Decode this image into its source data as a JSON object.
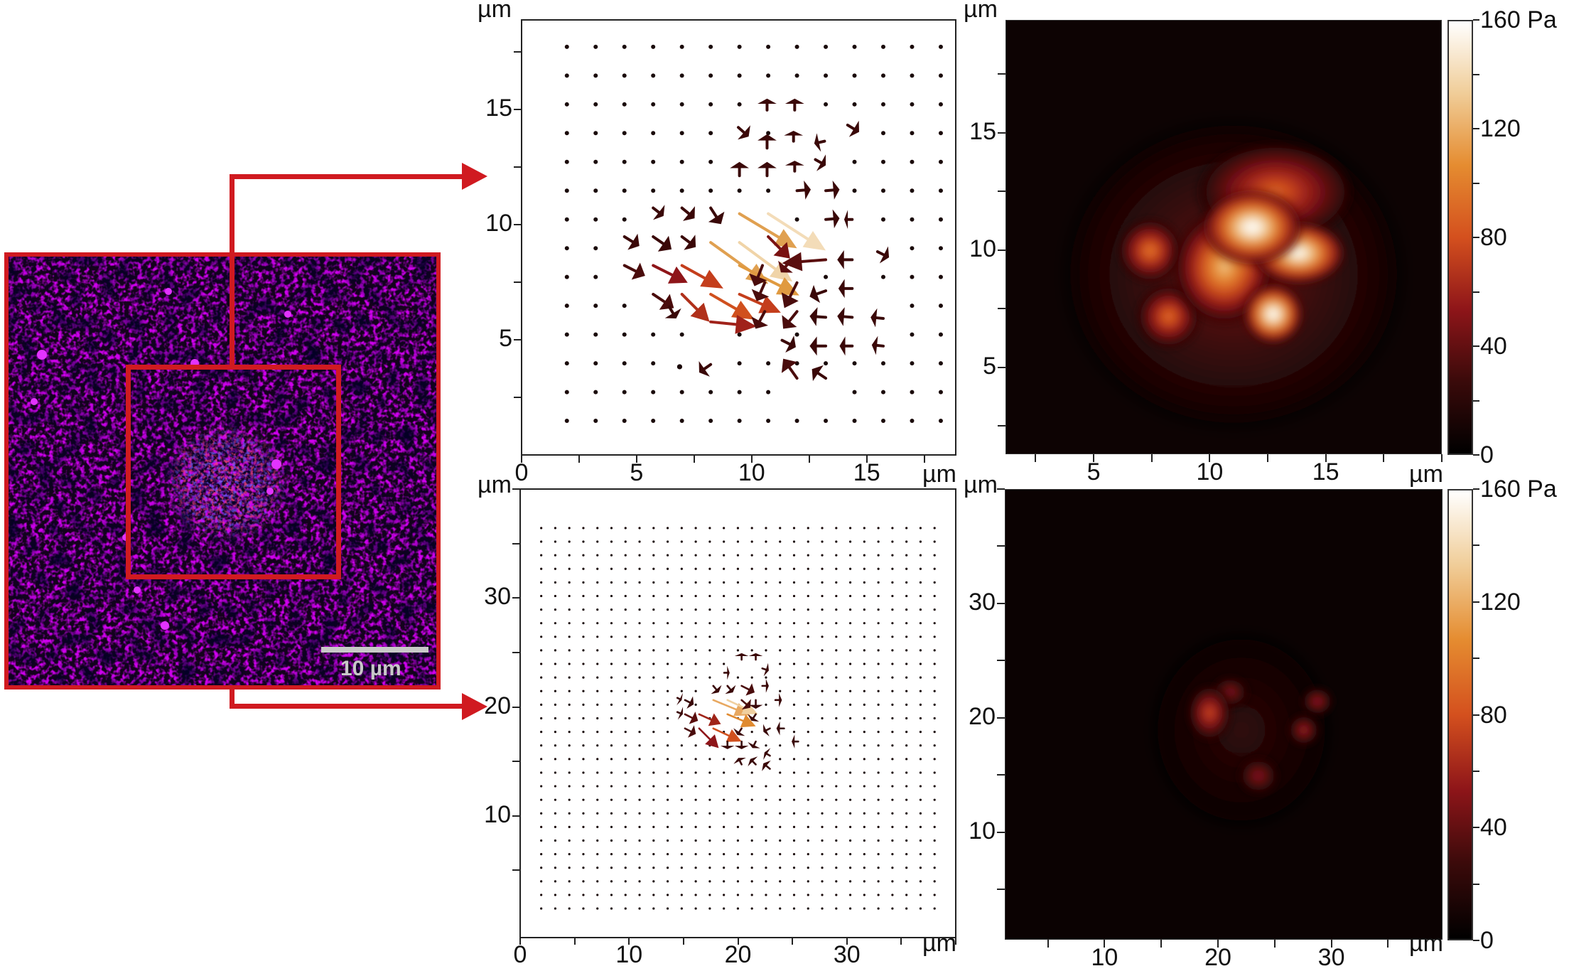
{
  "figure": {
    "micrograph": {
      "scale_bar_label": "10 µm",
      "frame_color": "#d01a20"
    },
    "units": {
      "length": "µm",
      "stress": "Pa"
    },
    "colorbar": {
      "max_label": "160 Pa",
      "tick_labels": [
        "120",
        "80",
        "40",
        "0"
      ],
      "stops": [
        "#000000",
        "#3a0a0a",
        "#8e1519",
        "#d4501e",
        "#e58c30",
        "#f0cd98",
        "#ffffff"
      ]
    }
  },
  "chart_data": [
    {
      "id": "top-quiver",
      "type": "quiver",
      "title": "Traction vectors (zoomed region)",
      "xlabel": "µm",
      "ylabel": "µm",
      "xlim": [
        0,
        18.9
      ],
      "ylim": [
        0,
        18.9
      ],
      "xticks": [
        0,
        5,
        10,
        15
      ],
      "xtick_labels": [
        "0",
        "5",
        "10",
        "15"
      ],
      "yticks": [
        5,
        10,
        15
      ],
      "ytick_labels": [
        "5",
        "10",
        "15"
      ],
      "grid_x": [
        2.0,
        3.25,
        4.5,
        5.75,
        7.0,
        8.25,
        9.5,
        10.75,
        12.0,
        13.25,
        14.5,
        15.75,
        17.0,
        18.25
      ],
      "grid_y": [
        17.7,
        16.45,
        15.2,
        13.95,
        12.7,
        11.45,
        10.2,
        8.95,
        7.7,
        6.45,
        5.2,
        3.95,
        2.7,
        1.45
      ],
      "arrows": [
        {
          "x": 9.5,
          "y": 10.45,
          "dx": 2.5,
          "dy": -1.5,
          "c": "#e0a050"
        },
        {
          "x": 10.75,
          "y": 10.45,
          "dx": 2.5,
          "dy": -1.6,
          "c": "#f3dcb8"
        },
        {
          "x": 8.25,
          "y": 9.2,
          "dx": 2.5,
          "dy": -1.8,
          "c": "#e0a050"
        },
        {
          "x": 9.5,
          "y": 9.2,
          "dx": 2.3,
          "dy": -1.7,
          "c": "#f0d4a8"
        },
        {
          "x": 9.5,
          "y": 8.2,
          "dx": 2.6,
          "dy": -1.3,
          "c": "#e09a40"
        },
        {
          "x": 5.75,
          "y": 8.2,
          "dx": 1.5,
          "dy": -0.75,
          "c": "#8e1519"
        },
        {
          "x": 7.0,
          "y": 8.2,
          "dx": 1.8,
          "dy": -1.0,
          "c": "#c43e1c"
        },
        {
          "x": 8.25,
          "y": 6.95,
          "dx": 1.9,
          "dy": -1.1,
          "c": "#d0501e"
        },
        {
          "x": 9.5,
          "y": 6.95,
          "dx": 1.8,
          "dy": -0.8,
          "c": "#c43e1c"
        },
        {
          "x": 7.0,
          "y": 6.95,
          "dx": 1.2,
          "dy": -1.2,
          "c": "#b0301a"
        },
        {
          "x": 8.25,
          "y": 5.75,
          "dx": 2.0,
          "dy": -0.2,
          "c": "#a0221a"
        },
        {
          "x": 4.5,
          "y": 8.2,
          "dx": 0.9,
          "dy": -0.45,
          "c": "#4a0c0c"
        },
        {
          "x": 5.75,
          "y": 6.95,
          "dx": 0.9,
          "dy": -0.6,
          "c": "#4a0c0c"
        },
        {
          "x": 6.45,
          "y": 6.4,
          "dx": 0.3,
          "dy": -0.5,
          "c": "#3a0808"
        },
        {
          "x": 4.5,
          "y": 9.45,
          "dx": 0.65,
          "dy": -0.4,
          "c": "#3a0808"
        },
        {
          "x": 5.75,
          "y": 9.45,
          "dx": 0.8,
          "dy": -0.55,
          "c": "#3a0808"
        },
        {
          "x": 7.0,
          "y": 9.45,
          "dx": 0.6,
          "dy": -0.45,
          "c": "#3a0808"
        },
        {
          "x": 5.75,
          "y": 10.7,
          "dx": 0.45,
          "dy": -0.35,
          "c": "#3a0808"
        },
        {
          "x": 7.0,
          "y": 10.7,
          "dx": 0.55,
          "dy": -0.45,
          "c": "#3a0808"
        },
        {
          "x": 8.25,
          "y": 10.7,
          "dx": 0.45,
          "dy": -0.7,
          "c": "#3a0808"
        },
        {
          "x": 10.75,
          "y": 9.45,
          "dx": 0.95,
          "dy": -0.95,
          "c": "#7a1212"
        },
        {
          "x": 13.25,
          "y": 8.45,
          "dx": -1.9,
          "dy": -0.15,
          "c": "#5a0e0e"
        },
        {
          "x": 11.75,
          "y": 8.45,
          "dx": -0.45,
          "dy": -0.55,
          "c": "#5a0e0e"
        },
        {
          "x": 10.5,
          "y": 8.2,
          "dx": -0.35,
          "dy": -0.9,
          "c": "#4a0c0c"
        },
        {
          "x": 12.0,
          "y": 7.45,
          "dx": -0.55,
          "dy": -1.1,
          "c": "#4a0c0c"
        },
        {
          "x": 10.6,
          "y": 7.45,
          "dx": -0.35,
          "dy": -0.8,
          "c": "#4a0c0c"
        },
        {
          "x": 10.6,
          "y": 6.2,
          "dx": -0.4,
          "dy": -0.75,
          "c": "#4a0c0c"
        },
        {
          "x": 12.0,
          "y": 6.2,
          "dx": -0.6,
          "dy": -0.75,
          "c": "#4a0c0c"
        },
        {
          "x": 13.25,
          "y": 7.1,
          "dx": -0.7,
          "dy": -0.25,
          "c": "#3a0808"
        },
        {
          "x": 14.4,
          "y": 8.45,
          "dx": -0.65,
          "dy": 0.0,
          "c": "#3a0808"
        },
        {
          "x": 14.4,
          "y": 7.2,
          "dx": -0.6,
          "dy": 0.0,
          "c": "#3a0808"
        },
        {
          "x": 15.5,
          "y": 8.8,
          "dx": 0.5,
          "dy": -0.25,
          "c": "#3a0808"
        },
        {
          "x": 13.25,
          "y": 5.95,
          "dx": -0.7,
          "dy": 0.05,
          "c": "#3a0808"
        },
        {
          "x": 14.4,
          "y": 5.95,
          "dx": -0.65,
          "dy": 0.05,
          "c": "#3a0808"
        },
        {
          "x": 15.75,
          "y": 5.9,
          "dx": -0.55,
          "dy": 0.05,
          "c": "#3a0808"
        },
        {
          "x": 11.35,
          "y": 4.95,
          "dx": 0.6,
          "dy": -0.3,
          "c": "#3a0808"
        },
        {
          "x": 13.25,
          "y": 4.7,
          "dx": -0.7,
          "dy": 0.0,
          "c": "#3a0808"
        },
        {
          "x": 14.4,
          "y": 4.7,
          "dx": -0.55,
          "dy": 0.0,
          "c": "#3a0808"
        },
        {
          "x": 15.75,
          "y": 4.7,
          "dx": -0.5,
          "dy": 0.05,
          "c": "#3a0808"
        },
        {
          "x": 12.0,
          "y": 3.3,
          "dx": -0.6,
          "dy": 0.85,
          "c": "#4a0c0c"
        },
        {
          "x": 13.25,
          "y": 3.3,
          "dx": -0.6,
          "dy": 0.4,
          "c": "#3a0808"
        },
        {
          "x": 8.25,
          "y": 3.9,
          "dx": -0.5,
          "dy": -0.35,
          "c": "#3a0808"
        },
        {
          "x": 9.45,
          "y": 14.2,
          "dx": 0.45,
          "dy": -0.4,
          "c": "#3a0808"
        },
        {
          "x": 10.7,
          "y": 13.3,
          "dx": 0.0,
          "dy": 0.6,
          "c": "#3a0808"
        },
        {
          "x": 11.85,
          "y": 13.6,
          "dx": 0.0,
          "dy": 0.45,
          "c": "#3a0808"
        },
        {
          "x": 13.2,
          "y": 13.6,
          "dx": -0.45,
          "dy": -0.1,
          "c": "#3a0808"
        },
        {
          "x": 14.2,
          "y": 14.3,
          "dx": 0.5,
          "dy": -0.3,
          "c": "#3a0808"
        },
        {
          "x": 9.5,
          "y": 12.1,
          "dx": 0.0,
          "dy": 0.6,
          "c": "#3a0808"
        },
        {
          "x": 10.7,
          "y": 12.1,
          "dx": 0.0,
          "dy": 0.6,
          "c": "#3a0808"
        },
        {
          "x": 11.9,
          "y": 12.3,
          "dx": 0.0,
          "dy": 0.45,
          "c": "#3a0808"
        },
        {
          "x": 12.8,
          "y": 12.8,
          "dx": 0.45,
          "dy": -0.25,
          "c": "#3a0808"
        },
        {
          "x": 10.7,
          "y": 14.95,
          "dx": 0.0,
          "dy": 0.5,
          "c": "#3a0808"
        },
        {
          "x": 11.9,
          "y": 14.95,
          "dx": 0.0,
          "dy": 0.5,
          "c": "#3a0808"
        },
        {
          "x": 12.0,
          "y": 11.45,
          "dx": 0.6,
          "dy": 0.05,
          "c": "#3a0808"
        },
        {
          "x": 13.25,
          "y": 11.45,
          "dx": 0.6,
          "dy": 0.05,
          "c": "#3a0808"
        },
        {
          "x": 13.25,
          "y": 10.2,
          "dx": 0.6,
          "dy": 0.05,
          "c": "#3a0808"
        },
        {
          "x": 14.4,
          "y": 10.2,
          "dx": -0.35,
          "dy": 0.0,
          "c": "#3a0808"
        },
        {
          "x": 6.9,
          "y": 3.8,
          "dx": 0.0,
          "dy": 0.0,
          "c": "#3a0808"
        }
      ]
    },
    {
      "id": "top-heatmap",
      "type": "heatmap",
      "title": "Traction stress magnitude (zoomed region)",
      "xlabel": "µm",
      "ylabel": "µm",
      "xlim": [
        1.2,
        20.0
      ],
      "ylim": [
        1.3,
        19.8
      ],
      "xticks": [
        5,
        10,
        15
      ],
      "xtick_labels": [
        "5",
        "10",
        "15"
      ],
      "yticks": [
        5,
        10,
        15
      ],
      "ytick_labels": [
        "5",
        "10",
        "15"
      ],
      "colorbar": {
        "label": "Pa",
        "range": [
          0,
          160
        ],
        "ticks": [
          0,
          40,
          80,
          120,
          160
        ]
      },
      "hotspots": [
        {
          "x": 11.8,
          "y": 11.0,
          "rx": 1.6,
          "ry": 1.2,
          "value": 175
        },
        {
          "x": 13.8,
          "y": 9.9,
          "rx": 1.5,
          "ry": 1.0,
          "value": 170
        },
        {
          "x": 12.7,
          "y": 7.3,
          "rx": 0.95,
          "ry": 0.95,
          "value": 175
        },
        {
          "x": 10.6,
          "y": 9.3,
          "rx": 1.6,
          "ry": 1.8,
          "value": 130
        },
        {
          "x": 7.4,
          "y": 10.0,
          "rx": 1.0,
          "ry": 1.0,
          "value": 100
        },
        {
          "x": 8.2,
          "y": 7.2,
          "rx": 1.0,
          "ry": 1.0,
          "value": 95
        },
        {
          "x": 12.8,
          "y": 12.5,
          "rx": 2.5,
          "ry": 1.6,
          "value": 90
        },
        {
          "x": 11.0,
          "y": 9.0,
          "rx": 5.5,
          "ry": 5.0,
          "value": 45
        }
      ]
    },
    {
      "id": "bottom-quiver",
      "type": "quiver",
      "title": "Traction vectors (full field)",
      "xlabel": "µm",
      "ylabel": "µm",
      "xlim": [
        0,
        40.0
      ],
      "ylim": [
        -1.1,
        40.0
      ],
      "xticks": [
        0,
        10,
        20,
        30
      ],
      "xtick_labels": [
        "0",
        "10",
        "20",
        "30"
      ],
      "yticks": [
        10,
        20,
        30
      ],
      "ytick_labels": [
        "10",
        "20",
        "30"
      ],
      "grid": {
        "x_start": 2.0,
        "x_step": 1.29,
        "nx": 29,
        "y_start": 1.5,
        "y_step": 1.245,
        "ny": 29
      },
      "arrows": [
        {
          "x": 17.8,
          "y": 20.6,
          "dx": 3.4,
          "dy": -1.4,
          "c": "#e8a860"
        },
        {
          "x": 19.1,
          "y": 20.6,
          "dx": 2.8,
          "dy": -1.3,
          "c": "#f0d0a0"
        },
        {
          "x": 19.1,
          "y": 19.3,
          "dx": 2.6,
          "dy": -1.1,
          "c": "#e08a30"
        },
        {
          "x": 17.8,
          "y": 18.0,
          "dx": 2.6,
          "dy": -1.2,
          "c": "#d0501e"
        },
        {
          "x": 16.5,
          "y": 19.3,
          "dx": 2.0,
          "dy": -0.9,
          "c": "#a02418"
        },
        {
          "x": 16.5,
          "y": 18.0,
          "dx": 1.8,
          "dy": -1.8,
          "c": "#8e1519"
        },
        {
          "x": 15.2,
          "y": 19.3,
          "dx": 1.2,
          "dy": -0.6,
          "c": "#5a0e0e"
        },
        {
          "x": 15.2,
          "y": 18.0,
          "dx": 1.0,
          "dy": -0.5,
          "c": "#4a0c0c"
        },
        {
          "x": 15.2,
          "y": 20.6,
          "dx": 0.8,
          "dy": -0.4,
          "c": "#3a0808"
        },
        {
          "x": 17.8,
          "y": 21.9,
          "dx": 0.5,
          "dy": -0.6,
          "c": "#3a0808"
        },
        {
          "x": 19.1,
          "y": 21.9,
          "dx": 0.5,
          "dy": -0.6,
          "c": "#3a0808"
        },
        {
          "x": 20.4,
          "y": 21.9,
          "dx": 1.2,
          "dy": -0.6,
          "c": "#4a0c0c"
        },
        {
          "x": 20.4,
          "y": 20.6,
          "dx": 0.8,
          "dy": -0.7,
          "c": "#4a0c0c"
        },
        {
          "x": 21.7,
          "y": 20.6,
          "dx": 0.0,
          "dy": -0.8,
          "c": "#3a0808"
        },
        {
          "x": 21.7,
          "y": 19.3,
          "dx": -0.4,
          "dy": -0.6,
          "c": "#3a0808"
        },
        {
          "x": 20.4,
          "y": 18.0,
          "dx": -0.4,
          "dy": -0.6,
          "c": "#3a0808"
        },
        {
          "x": 20.4,
          "y": 16.8,
          "dx": 0.0,
          "dy": -0.7,
          "c": "#3a0808"
        },
        {
          "x": 19.1,
          "y": 16.8,
          "dx": 0.0,
          "dy": -0.7,
          "c": "#3a0808"
        },
        {
          "x": 21.7,
          "y": 16.8,
          "dx": -0.3,
          "dy": -0.6,
          "c": "#3a0808"
        },
        {
          "x": 23.0,
          "y": 18.0,
          "dx": -0.6,
          "dy": -0.3,
          "c": "#3a0808"
        },
        {
          "x": 24.3,
          "y": 18.0,
          "dx": -0.7,
          "dy": 0.0,
          "c": "#3a0808"
        },
        {
          "x": 25.6,
          "y": 16.8,
          "dx": -0.6,
          "dy": 0.0,
          "c": "#3a0808"
        },
        {
          "x": 23.0,
          "y": 15.5,
          "dx": -0.5,
          "dy": 0.3,
          "c": "#3a0808"
        },
        {
          "x": 21.7,
          "y": 14.7,
          "dx": -0.5,
          "dy": 0.5,
          "c": "#3a0808"
        },
        {
          "x": 23.0,
          "y": 14.3,
          "dx": -0.6,
          "dy": 0.5,
          "c": "#3a0808"
        },
        {
          "x": 20.4,
          "y": 14.7,
          "dx": -0.3,
          "dy": 0.6,
          "c": "#3a0808"
        },
        {
          "x": 22.3,
          "y": 21.9,
          "dx": 0.6,
          "dy": 0.0,
          "c": "#3a0808"
        },
        {
          "x": 23.5,
          "y": 20.6,
          "dx": 0.6,
          "dy": 0.0,
          "c": "#3a0808"
        },
        {
          "x": 20.4,
          "y": 24.3,
          "dx": 0.0,
          "dy": 0.6,
          "c": "#3a0808"
        },
        {
          "x": 21.7,
          "y": 24.3,
          "dx": 0.0,
          "dy": 0.6,
          "c": "#3a0808"
        },
        {
          "x": 18.8,
          "y": 23.1,
          "dx": 0.5,
          "dy": 0.0,
          "c": "#3a0808"
        },
        {
          "x": 22.3,
          "y": 23.5,
          "dx": 0.6,
          "dy": -0.2,
          "c": "#3a0808"
        },
        {
          "x": 14.5,
          "y": 20.8,
          "dx": 0.4,
          "dy": -0.2,
          "c": "#3a0808"
        },
        {
          "x": 14.5,
          "y": 19.5,
          "dx": 0.5,
          "dy": -0.2,
          "c": "#3a0808"
        }
      ]
    },
    {
      "id": "bottom-heatmap",
      "type": "heatmap",
      "title": "Traction stress magnitude (full field)",
      "xlabel": "µm",
      "ylabel": "µm",
      "xlim": [
        1.2,
        39.8
      ],
      "ylim": [
        0.6,
        40.0
      ],
      "xticks": [
        10,
        20,
        30
      ],
      "xtick_labels": [
        "10",
        "20",
        "30"
      ],
      "xminor": [
        5,
        15,
        25,
        35
      ],
      "yticks": [
        10,
        20,
        30
      ],
      "ytick_labels": [
        "10",
        "20",
        "30"
      ],
      "colorbar": {
        "label": "Pa",
        "range": [
          0,
          160
        ],
        "ticks": [
          0,
          40,
          80,
          120,
          160
        ]
      },
      "hotspots": [
        {
          "x": 19.2,
          "y": 20.5,
          "rx": 1.4,
          "ry": 1.8,
          "value": 80
        },
        {
          "x": 21.0,
          "y": 22.3,
          "rx": 1.2,
          "ry": 1.0,
          "value": 55
        },
        {
          "x": 28.7,
          "y": 21.5,
          "rx": 1.0,
          "ry": 0.9,
          "value": 60
        },
        {
          "x": 27.5,
          "y": 19.0,
          "rx": 1.0,
          "ry": 1.0,
          "value": 62
        },
        {
          "x": 23.5,
          "y": 15.0,
          "rx": 1.3,
          "ry": 1.2,
          "value": 55
        },
        {
          "x": 22.0,
          "y": 19.0,
          "rx": 6.0,
          "ry": 6.5,
          "value": 22
        }
      ]
    }
  ]
}
